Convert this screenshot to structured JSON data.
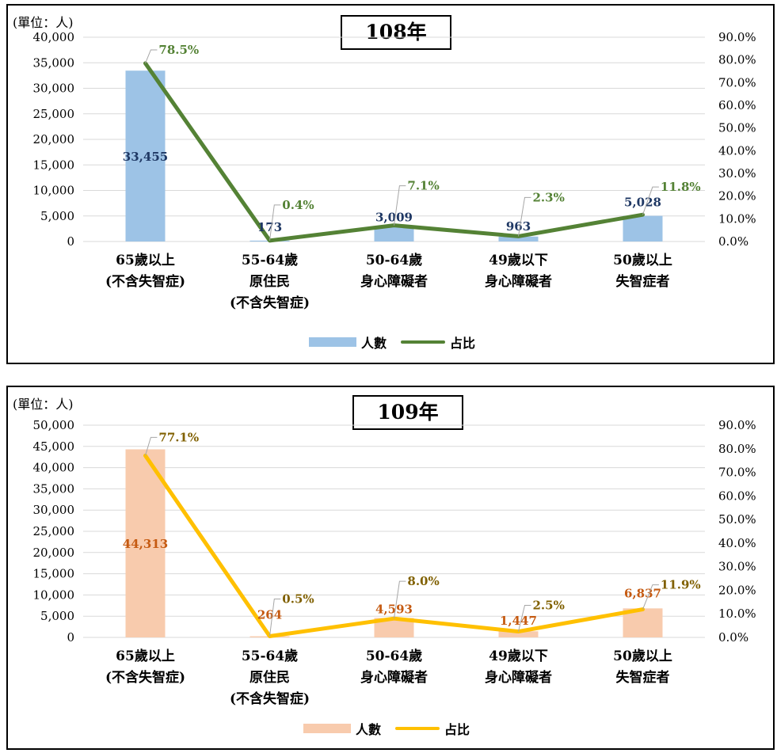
{
  "chart_data": [
    {
      "type": "bar",
      "title": "108年",
      "unit_label": "(單位：人)",
      "categories": [
        [
          "65歲以上",
          "(不含失智症)"
        ],
        [
          "55-64歲",
          "原住民",
          "(不含失智症)"
        ],
        [
          "50-64歲",
          "身心障礙者"
        ],
        [
          "49歲以下",
          "身心障礙者"
        ],
        [
          "50歲以上",
          "失智症者"
        ]
      ],
      "series": [
        {
          "name": "人數",
          "type": "bar",
          "axis": "left",
          "color": "#9dc3e6",
          "label_color": "#1f3864",
          "values": [
            33455,
            173,
            3009,
            963,
            5028
          ],
          "labels": [
            "33,455",
            "173",
            "3,009",
            "963",
            "5,028"
          ]
        },
        {
          "name": "占比",
          "type": "line",
          "axis": "right",
          "color": "#548235",
          "label_color": "#548235",
          "values": [
            78.5,
            0.4,
            7.1,
            2.3,
            11.8
          ],
          "labels": [
            "78.5%",
            "0.4%",
            "7.1%",
            "2.3%",
            "11.8%"
          ]
        }
      ],
      "ylim_left": [
        0,
        40000
      ],
      "yticks_left": [
        "0",
        "5,000",
        "10,000",
        "15,000",
        "20,000",
        "25,000",
        "30,000",
        "35,000",
        "40,000"
      ],
      "ylim_right": [
        0,
        90
      ],
      "yticks_right": [
        "0.0%",
        "10.0%",
        "20.0%",
        "30.0%",
        "40.0%",
        "50.0%",
        "60.0%",
        "70.0%",
        "80.0%",
        "90.0%"
      ],
      "legend_position": "bottom"
    },
    {
      "type": "bar",
      "title": "109年",
      "unit_label": "(單位：人)",
      "categories": [
        [
          "65歲以上",
          "(不含失智症)"
        ],
        [
          "55-64歲",
          "原住民",
          "(不含失智症)"
        ],
        [
          "50-64歲",
          "身心障礙者"
        ],
        [
          "49歲以下",
          "身心障礙者"
        ],
        [
          "50歲以上",
          "失智症者"
        ]
      ],
      "series": [
        {
          "name": "人數",
          "type": "bar",
          "axis": "left",
          "color": "#f8cbad",
          "label_color": "#c55a11",
          "values": [
            44313,
            264,
            4593,
            1447,
            6837
          ],
          "labels": [
            "44,313",
            "264",
            "4,593",
            "1,447",
            "6,837"
          ]
        },
        {
          "name": "占比",
          "type": "line",
          "axis": "right",
          "color": "#ffc000",
          "label_color": "#806000",
          "values": [
            77.1,
            0.5,
            8.0,
            2.5,
            11.9
          ],
          "labels": [
            "77.1%",
            "0.5%",
            "8.0%",
            "2.5%",
            "11.9%"
          ]
        }
      ],
      "ylim_left": [
        0,
        50000
      ],
      "yticks_left": [
        "0",
        "5,000",
        "10,000",
        "15,000",
        "20,000",
        "25,000",
        "30,000",
        "35,000",
        "40,000",
        "45,000",
        "50,000"
      ],
      "ylim_right": [
        0,
        90
      ],
      "yticks_right": [
        "0.0%",
        "10.0%",
        "20.0%",
        "30.0%",
        "40.0%",
        "50.0%",
        "60.0%",
        "70.0%",
        "80.0%",
        "90.0%"
      ],
      "legend_position": "bottom"
    }
  ]
}
